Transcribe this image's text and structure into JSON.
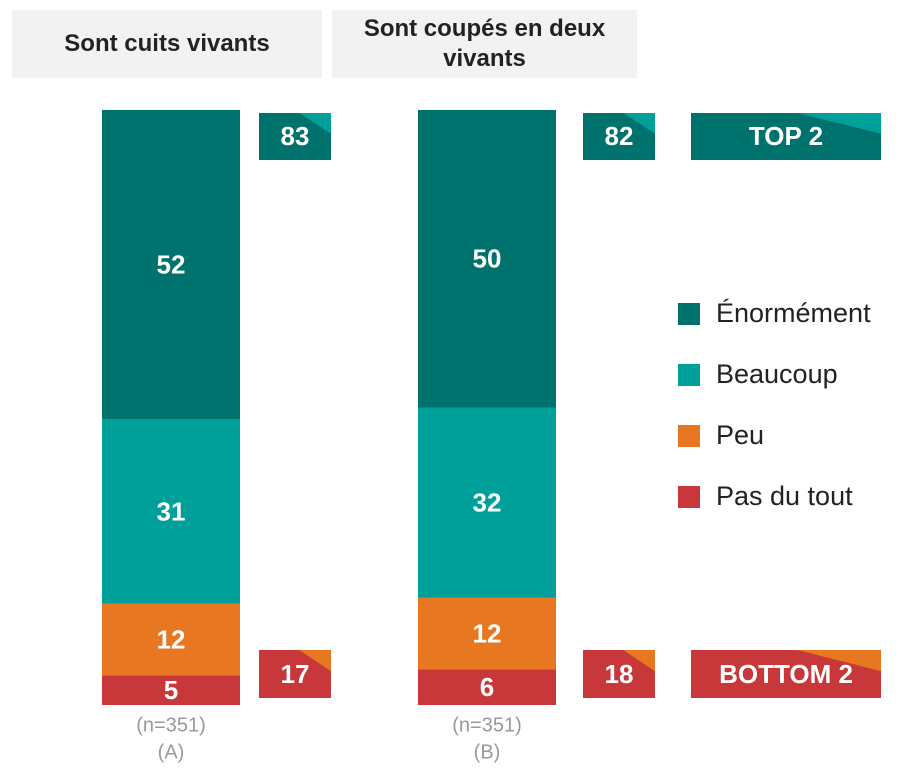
{
  "chart_data": {
    "type": "stacked_bar",
    "categories": [
      "Sont cuits vivants",
      "Sont coupés en deux vivants"
    ],
    "series": [
      {
        "name": "Énormément",
        "color": "#00726e",
        "values": [
          52,
          50
        ]
      },
      {
        "name": "Beaucoup",
        "color": "#00a09a",
        "values": [
          31,
          32
        ]
      },
      {
        "name": "Peu",
        "color": "#e87722",
        "values": [
          12,
          12
        ]
      },
      {
        "name": "Pas du tout",
        "color": "#c8373a",
        "values": [
          5,
          6
        ]
      }
    ],
    "top2": {
      "label": "TOP 2",
      "values": [
        83,
        82
      ],
      "color": "#00726e",
      "corner_color": "#00a09a"
    },
    "bottom2": {
      "label": "BOTTOM 2",
      "values": [
        17,
        18
      ],
      "color": "#c8373a",
      "corner_color": "#e87722"
    },
    "sample_sizes": [
      "(n=351)",
      "(n=351)"
    ],
    "group_labels": [
      "(A)",
      "(B)"
    ]
  }
}
